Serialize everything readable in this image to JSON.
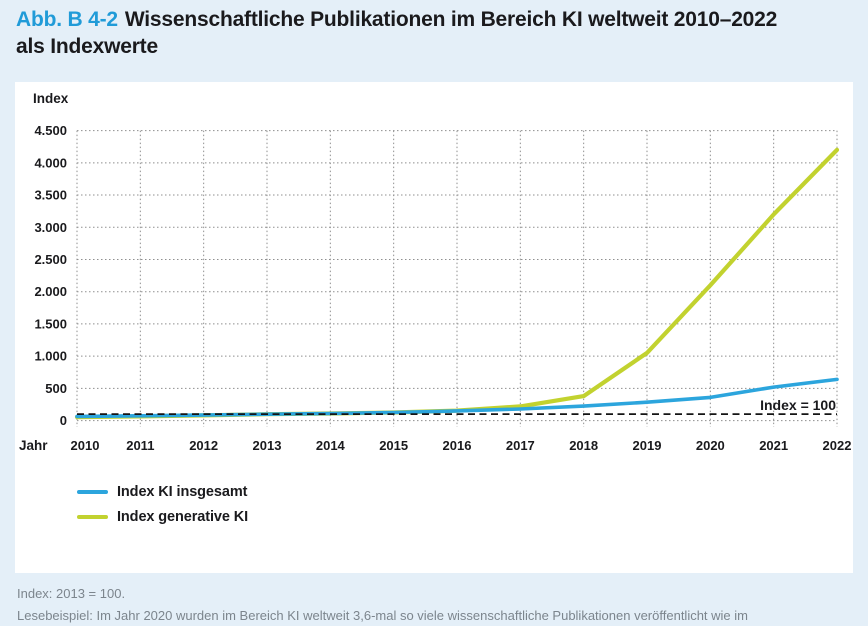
{
  "title": {
    "tag": "Abb. B 4-2",
    "line1": "Wissenschaftliche Publikationen im Bereich KI weltweit 2010–2022",
    "line2": "als Indexwerte"
  },
  "colors": {
    "accent_blue": "#209bd8",
    "page_background": "#e4eff8",
    "panel_background": "#ffffff",
    "grid_gray": "#8f8f8f",
    "text_black": "#1a1a1d",
    "footer_gray": "#7c858d",
    "reference_line_black": "#141414"
  },
  "chart_data": {
    "type": "line",
    "title": "Wissenschaftliche Publikationen im Bereich KI weltweit 2010–2022 als Indexwerte",
    "ylabel": "Index",
    "xlabel": "Jahr",
    "x": [
      2010,
      2011,
      2012,
      2013,
      2014,
      2015,
      2016,
      2017,
      2018,
      2019,
      2020,
      2021,
      2022
    ],
    "ylim": [
      0,
      4500
    ],
    "y_tick_values": [
      0,
      500,
      1000,
      1500,
      2000,
      2500,
      3000,
      3500,
      4000,
      4500
    ],
    "y_tick_labels": [
      "0",
      "500",
      "1.000",
      "1.500",
      "2.000",
      "2.500",
      "3.000",
      "3.500",
      "4.000",
      "4.500"
    ],
    "grid": "dotted, horizontal and vertical",
    "legend_position": "bottom-left",
    "reference_line": {
      "value": 100,
      "label": "Index = 100",
      "style": "dashed"
    },
    "series": [
      {
        "name": "Index KI insgesamt",
        "color": "#2ca5dd",
        "values": [
          65,
          75,
          85,
          100,
          110,
          125,
          150,
          180,
          225,
          285,
          360,
          520,
          640
        ]
      },
      {
        "name": "Index generative KI",
        "color": "#c2d22f",
        "values": [
          55,
          65,
          80,
          100,
          110,
          125,
          155,
          220,
          380,
          1050,
          2100,
          3200,
          4200
        ]
      }
    ]
  },
  "footer": {
    "line1": "Index: 2013 = 100.",
    "line2": "Lesebeispiel: Im Jahr 2020 wurden im Bereich KI weltweit 3,6-mal so viele wissenschaftliche Publikationen veröffentlicht wie im"
  }
}
